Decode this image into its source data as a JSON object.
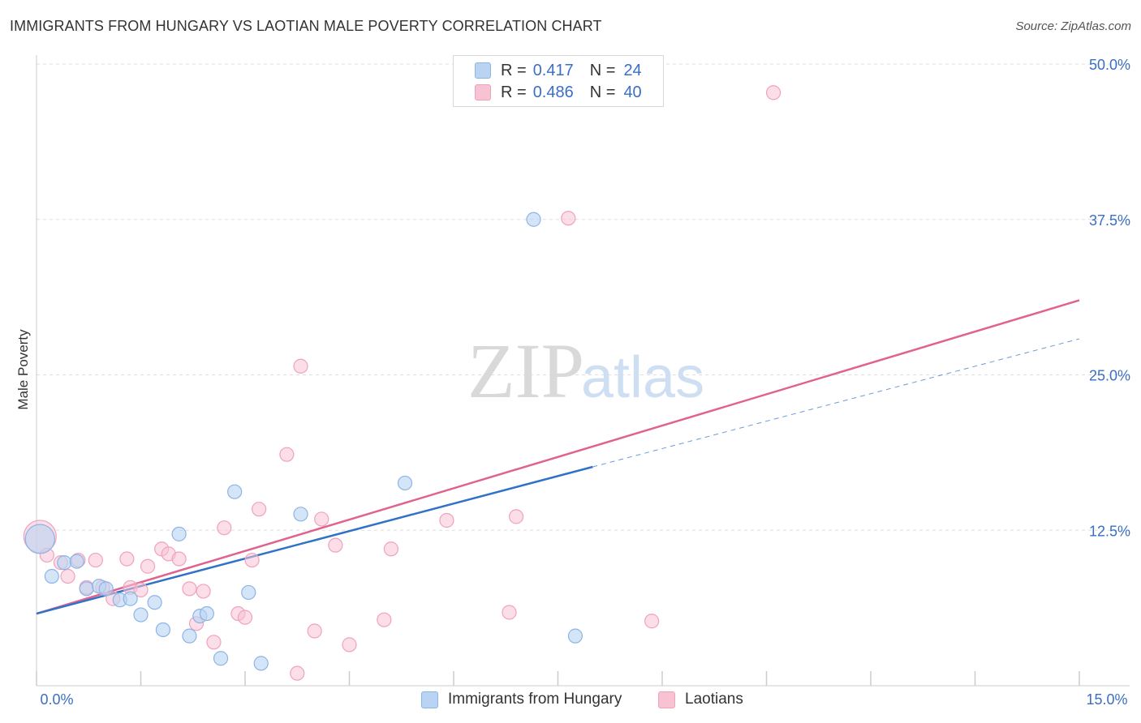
{
  "header": {
    "title": "IMMIGRANTS FROM HUNGARY VS LAOTIAN MALE POVERTY CORRELATION CHART",
    "source": "Source: ZipAtlas.com"
  },
  "legend": {
    "series1": {
      "r_label": "R =",
      "r_value": "0.417",
      "n_label": "N =",
      "n_value": "24"
    },
    "series2": {
      "r_label": "R =",
      "r_value": "0.486",
      "n_label": "N =",
      "n_value": "40"
    }
  },
  "bottom_legend": {
    "series1": "Immigrants from Hungary",
    "series2": "Laotians"
  },
  "colors": {
    "blue_fill": "#b9d3f3",
    "blue_stroke": "#8db4e6",
    "blue_line": "#2f72c8",
    "pink_fill": "#f7c3d3",
    "pink_stroke": "#f0a2bc",
    "pink_line": "#e0638f",
    "grid": "#dddddd",
    "axis_text": "#3a6fc4"
  },
  "chart_data": {
    "type": "scatter",
    "title": "IMMIGRANTS FROM HUNGARY VS LAOTIAN MALE POVERTY CORRELATION CHART",
    "xlabel": "",
    "ylabel": "Male Poverty",
    "xlim": [
      0,
      15
    ],
    "ylim": [
      0,
      50
    ],
    "x_tick_labels": [
      "0.0%",
      "15.0%"
    ],
    "y_ticks": [
      12.5,
      25.0,
      37.5,
      50.0
    ],
    "y_tick_labels": [
      "12.5%",
      "25.0%",
      "37.5%",
      "50.0%"
    ],
    "watermark": {
      "part1": "ZIP",
      "part2": "atlas"
    },
    "series": [
      {
        "name": "Immigrants from Hungary",
        "r": 0.417,
        "n": 24,
        "points": [
          [
            0.05,
            11.8
          ],
          [
            0.22,
            8.8
          ],
          [
            0.4,
            9.9
          ],
          [
            0.58,
            10.0
          ],
          [
            0.72,
            7.8
          ],
          [
            0.9,
            8.0
          ],
          [
            1.0,
            7.8
          ],
          [
            1.2,
            6.9
          ],
          [
            1.35,
            7.0
          ],
          [
            1.5,
            5.7
          ],
          [
            1.7,
            6.7
          ],
          [
            1.82,
            4.5
          ],
          [
            2.05,
            12.2
          ],
          [
            2.2,
            4.0
          ],
          [
            2.35,
            5.6
          ],
          [
            2.45,
            5.8
          ],
          [
            2.65,
            2.2
          ],
          [
            2.85,
            15.6
          ],
          [
            3.05,
            7.5
          ],
          [
            3.23,
            1.8
          ],
          [
            3.8,
            13.8
          ],
          [
            5.3,
            16.3
          ],
          [
            7.15,
            37.5
          ],
          [
            7.75,
            4.0
          ]
        ],
        "trend_solid": [
          [
            0,
            5.8
          ],
          [
            8.0,
            17.6
          ]
        ],
        "trend_dashed": [
          [
            8.0,
            17.6
          ],
          [
            15.0,
            27.9
          ]
        ]
      },
      {
        "name": "Laotians",
        "r": 0.486,
        "n": 40,
        "points": [
          [
            0.05,
            12.0
          ],
          [
            0.15,
            10.5
          ],
          [
            0.35,
            9.9
          ],
          [
            0.45,
            8.8
          ],
          [
            0.6,
            10.1
          ],
          [
            0.72,
            7.9
          ],
          [
            0.85,
            10.1
          ],
          [
            0.95,
            7.9
          ],
          [
            1.1,
            7.0
          ],
          [
            1.3,
            10.2
          ],
          [
            1.35,
            7.9
          ],
          [
            1.5,
            7.7
          ],
          [
            1.6,
            9.6
          ],
          [
            1.8,
            11.0
          ],
          [
            1.9,
            10.6
          ],
          [
            2.05,
            10.2
          ],
          [
            2.2,
            7.8
          ],
          [
            2.3,
            5.0
          ],
          [
            2.4,
            7.6
          ],
          [
            2.55,
            3.5
          ],
          [
            2.7,
            12.7
          ],
          [
            2.9,
            5.8
          ],
          [
            3.0,
            5.5
          ],
          [
            3.1,
            10.1
          ],
          [
            3.2,
            14.2
          ],
          [
            3.6,
            18.6
          ],
          [
            3.75,
            1.0
          ],
          [
            3.8,
            25.7
          ],
          [
            4.0,
            4.4
          ],
          [
            4.1,
            13.4
          ],
          [
            4.3,
            11.3
          ],
          [
            4.5,
            3.3
          ],
          [
            5.0,
            5.3
          ],
          [
            5.1,
            11.0
          ],
          [
            5.9,
            13.3
          ],
          [
            6.8,
            5.9
          ],
          [
            6.9,
            13.6
          ],
          [
            7.65,
            37.6
          ],
          [
            8.85,
            5.2
          ],
          [
            10.6,
            47.7
          ]
        ],
        "trend_solid": [
          [
            0,
            5.8
          ],
          [
            15.0,
            31.0
          ]
        ]
      }
    ]
  }
}
